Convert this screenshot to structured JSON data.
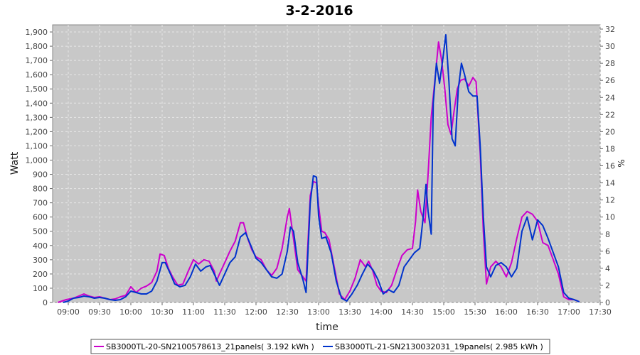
{
  "chart_data": {
    "type": "line",
    "title": "3-2-2016",
    "xlabel": "time",
    "ylabel": "Watt",
    "y2label": "%",
    "ylim": [
      0,
      1950
    ],
    "y2lim": [
      0,
      32.5
    ],
    "xlim": [
      "08:45",
      "17:30"
    ],
    "grid": true,
    "legend_position": "bottom",
    "x_ticks": [
      "09:00",
      "09:30",
      "10:00",
      "10:30",
      "11:00",
      "11:30",
      "12:00",
      "12:30",
      "13:00",
      "13:30",
      "14:00",
      "14:30",
      "15:00",
      "15:30",
      "16:00",
      "16:30",
      "17:00",
      "17:30"
    ],
    "y_ticks": [
      "0",
      "100",
      "200",
      "300",
      "400",
      "500",
      "600",
      "700",
      "800",
      "900",
      "1,000",
      "1,100",
      "1,200",
      "1,300",
      "1,400",
      "1,500",
      "1,600",
      "1,700",
      "1,800",
      "1,900"
    ],
    "y2_ticks": [
      "0",
      "2",
      "4",
      "6",
      "8",
      "10",
      "12",
      "14",
      "16",
      "18",
      "20",
      "22",
      "24",
      "26",
      "28",
      "30",
      "32"
    ],
    "colors": {
      "plot_bg": "#c8c8c8",
      "grid": "#e6e6e6"
    },
    "series": [
      {
        "name": "SB3000TL-20-SN2100578613_21panels( 3.192 kWh )",
        "color": "#cc00cc",
        "points": [
          [
            "08:50",
            0
          ],
          [
            "08:58",
            20
          ],
          [
            "09:05",
            30
          ],
          [
            "09:10",
            45
          ],
          [
            "09:15",
            60
          ],
          [
            "09:20",
            45
          ],
          [
            "09:25",
            35
          ],
          [
            "09:30",
            40
          ],
          [
            "09:35",
            30
          ],
          [
            "09:40",
            20
          ],
          [
            "09:45",
            25
          ],
          [
            "09:50",
            40
          ],
          [
            "09:55",
            50
          ],
          [
            "10:00",
            110
          ],
          [
            "10:05",
            70
          ],
          [
            "10:10",
            100
          ],
          [
            "10:15",
            115
          ],
          [
            "10:20",
            140
          ],
          [
            "10:25",
            220
          ],
          [
            "10:28",
            340
          ],
          [
            "10:32",
            330
          ],
          [
            "10:36",
            240
          ],
          [
            "10:40",
            180
          ],
          [
            "10:45",
            120
          ],
          [
            "10:50",
            130
          ],
          [
            "10:55",
            220
          ],
          [
            "11:00",
            300
          ],
          [
            "11:05",
            270
          ],
          [
            "11:10",
            300
          ],
          [
            "11:15",
            290
          ],
          [
            "11:20",
            220
          ],
          [
            "11:22",
            150
          ],
          [
            "11:25",
            200
          ],
          [
            "11:30",
            280
          ],
          [
            "11:35",
            360
          ],
          [
            "11:40",
            430
          ],
          [
            "11:45",
            560
          ],
          [
            "11:48",
            560
          ],
          [
            "11:52",
            450
          ],
          [
            "11:56",
            370
          ],
          [
            "12:00",
            320
          ],
          [
            "12:05",
            300
          ],
          [
            "12:10",
            230
          ],
          [
            "12:15",
            190
          ],
          [
            "12:20",
            240
          ],
          [
            "12:25",
            380
          ],
          [
            "12:30",
            600
          ],
          [
            "12:32",
            660
          ],
          [
            "12:35",
            500
          ],
          [
            "12:40",
            230
          ],
          [
            "12:45",
            180
          ],
          [
            "12:48",
            150
          ],
          [
            "12:52",
            750
          ],
          [
            "12:55",
            850
          ],
          [
            "12:58",
            840
          ],
          [
            "13:00",
            680
          ],
          [
            "13:03",
            500
          ],
          [
            "13:06",
            490
          ],
          [
            "13:10",
            440
          ],
          [
            "13:15",
            250
          ],
          [
            "13:20",
            60
          ],
          [
            "13:25",
            20
          ],
          [
            "13:30",
            80
          ],
          [
            "13:35",
            170
          ],
          [
            "13:40",
            300
          ],
          [
            "13:45",
            250
          ],
          [
            "13:48",
            290
          ],
          [
            "13:52",
            220
          ],
          [
            "13:56",
            120
          ],
          [
            "14:00",
            80
          ],
          [
            "14:05",
            70
          ],
          [
            "14:10",
            120
          ],
          [
            "14:15",
            230
          ],
          [
            "14:20",
            330
          ],
          [
            "14:25",
            370
          ],
          [
            "14:30",
            380
          ],
          [
            "14:33",
            570
          ],
          [
            "14:35",
            790
          ],
          [
            "14:38",
            640
          ],
          [
            "14:42",
            560
          ],
          [
            "14:45",
            900
          ],
          [
            "14:48",
            1300
          ],
          [
            "14:52",
            1600
          ],
          [
            "14:55",
            1830
          ],
          [
            "14:58",
            1700
          ],
          [
            "15:01",
            1500
          ],
          [
            "15:04",
            1250
          ],
          [
            "15:07",
            1180
          ],
          [
            "15:10",
            1350
          ],
          [
            "15:13",
            1500
          ],
          [
            "15:16",
            1560
          ],
          [
            "15:20",
            1570
          ],
          [
            "15:24",
            1520
          ],
          [
            "15:28",
            1580
          ],
          [
            "15:31",
            1550
          ],
          [
            "15:35",
            1050
          ],
          [
            "15:38",
            500
          ],
          [
            "15:41",
            130
          ],
          [
            "15:45",
            250
          ],
          [
            "15:50",
            290
          ],
          [
            "15:55",
            250
          ],
          [
            "16:00",
            180
          ],
          [
            "16:05",
            280
          ],
          [
            "16:10",
            450
          ],
          [
            "16:15",
            600
          ],
          [
            "16:20",
            640
          ],
          [
            "16:25",
            620
          ],
          [
            "16:30",
            570
          ],
          [
            "16:35",
            420
          ],
          [
            "16:40",
            400
          ],
          [
            "16:45",
            300
          ],
          [
            "16:50",
            200
          ],
          [
            "16:55",
            40
          ],
          [
            "17:00",
            20
          ],
          [
            "17:05",
            20
          ],
          [
            "17:10",
            5
          ]
        ]
      },
      {
        "name": "SB3000TL-21-SN2130032031_19panels( 2.985 kWh )",
        "color": "#0033cc",
        "points": [
          [
            "08:55",
            0
          ],
          [
            "09:00",
            10
          ],
          [
            "09:05",
            30
          ],
          [
            "09:10",
            35
          ],
          [
            "09:15",
            45
          ],
          [
            "09:20",
            40
          ],
          [
            "09:25",
            30
          ],
          [
            "09:30",
            35
          ],
          [
            "09:35",
            30
          ],
          [
            "09:40",
            20
          ],
          [
            "09:45",
            15
          ],
          [
            "09:50",
            20
          ],
          [
            "09:55",
            40
          ],
          [
            "10:00",
            80
          ],
          [
            "10:05",
            70
          ],
          [
            "10:10",
            60
          ],
          [
            "10:15",
            60
          ],
          [
            "10:20",
            80
          ],
          [
            "10:25",
            150
          ],
          [
            "10:30",
            280
          ],
          [
            "10:33",
            280
          ],
          [
            "10:38",
            200
          ],
          [
            "10:42",
            130
          ],
          [
            "10:47",
            110
          ],
          [
            "10:52",
            120
          ],
          [
            "10:57",
            180
          ],
          [
            "11:02",
            270
          ],
          [
            "11:07",
            220
          ],
          [
            "11:12",
            250
          ],
          [
            "11:16",
            260
          ],
          [
            "11:20",
            200
          ],
          [
            "11:25",
            120
          ],
          [
            "11:30",
            200
          ],
          [
            "11:35",
            280
          ],
          [
            "11:40",
            320
          ],
          [
            "11:45",
            460
          ],
          [
            "11:50",
            490
          ],
          [
            "11:55",
            400
          ],
          [
            "12:00",
            310
          ],
          [
            "12:05",
            280
          ],
          [
            "12:10",
            230
          ],
          [
            "12:15",
            180
          ],
          [
            "12:20",
            170
          ],
          [
            "12:25",
            200
          ],
          [
            "12:30",
            360
          ],
          [
            "12:33",
            530
          ],
          [
            "12:36",
            500
          ],
          [
            "12:40",
            280
          ],
          [
            "12:45",
            160
          ],
          [
            "12:48",
            70
          ],
          [
            "12:52",
            700
          ],
          [
            "12:55",
            890
          ],
          [
            "12:58",
            880
          ],
          [
            "13:00",
            610
          ],
          [
            "13:03",
            450
          ],
          [
            "13:07",
            460
          ],
          [
            "13:12",
            350
          ],
          [
            "13:17",
            150
          ],
          [
            "13:22",
            30
          ],
          [
            "13:27",
            10
          ],
          [
            "13:32",
            60
          ],
          [
            "13:37",
            120
          ],
          [
            "13:42",
            200
          ],
          [
            "13:47",
            270
          ],
          [
            "13:52",
            230
          ],
          [
            "13:57",
            160
          ],
          [
            "14:02",
            60
          ],
          [
            "14:07",
            90
          ],
          [
            "14:12",
            70
          ],
          [
            "14:17",
            120
          ],
          [
            "14:22",
            250
          ],
          [
            "14:27",
            300
          ],
          [
            "14:32",
            350
          ],
          [
            "14:37",
            380
          ],
          [
            "14:40",
            580
          ],
          [
            "14:43",
            830
          ],
          [
            "14:45",
            640
          ],
          [
            "14:48",
            480
          ],
          [
            "14:50",
            1400
          ],
          [
            "14:53",
            1680
          ],
          [
            "14:56",
            1540
          ],
          [
            "14:59",
            1700
          ],
          [
            "15:02",
            1880
          ],
          [
            "15:05",
            1550
          ],
          [
            "15:08",
            1150
          ],
          [
            "15:11",
            1100
          ],
          [
            "15:14",
            1500
          ],
          [
            "15:17",
            1680
          ],
          [
            "15:20",
            1600
          ],
          [
            "15:24",
            1480
          ],
          [
            "15:28",
            1450
          ],
          [
            "15:32",
            1450
          ],
          [
            "15:35",
            1100
          ],
          [
            "15:38",
            600
          ],
          [
            "15:41",
            250
          ],
          [
            "15:45",
            180
          ],
          [
            "15:50",
            260
          ],
          [
            "15:55",
            280
          ],
          [
            "16:00",
            250
          ],
          [
            "16:05",
            180
          ],
          [
            "16:10",
            240
          ],
          [
            "16:15",
            500
          ],
          [
            "16:20",
            600
          ],
          [
            "16:25",
            440
          ],
          [
            "16:30",
            580
          ],
          [
            "16:35",
            540
          ],
          [
            "16:40",
            450
          ],
          [
            "16:45",
            350
          ],
          [
            "16:50",
            250
          ],
          [
            "16:55",
            70
          ],
          [
            "17:00",
            30
          ],
          [
            "17:05",
            20
          ],
          [
            "17:10",
            5
          ]
        ]
      }
    ]
  }
}
